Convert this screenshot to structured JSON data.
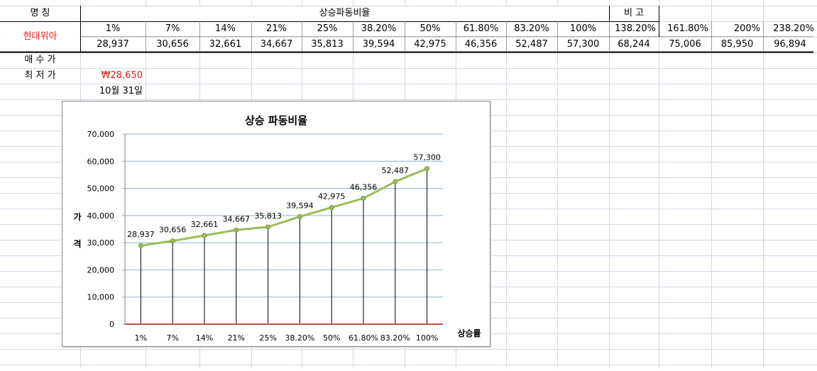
{
  "sheet": {
    "row1": {
      "name_label": "명    칭",
      "section_title": "상승파동비율",
      "remark_label": "비    고"
    },
    "company": "현대위아",
    "ratios": [
      "1%",
      "7%",
      "14%",
      "21%",
      "25%",
      "38.20%",
      "50%",
      "61.80%",
      "83.20%",
      "100%",
      "138.20%",
      "161.80%",
      "200%",
      "238.20%"
    ],
    "prices": [
      "28,937",
      "30,656",
      "32,661",
      "34,667",
      "35,813",
      "39,594",
      "42,975",
      "46,356",
      "52,487",
      "57,300",
      "68,244",
      "75,006",
      "85,950",
      "96,894"
    ],
    "buy_label": "매 수 가",
    "low_label": "최 저 가",
    "low_price": "₩28,650",
    "date": "10월 31일"
  },
  "colors": {
    "red_text": "#e0201b",
    "line": "#9bbb59",
    "drop": "#000000",
    "baseline": "#c0504d",
    "grid": "#8eb4c8"
  },
  "chart_data": {
    "type": "line",
    "title": "상승 파동비율",
    "ylabel": "가\n격",
    "xlabel": "상승률",
    "categories": [
      "1%",
      "7%",
      "14%",
      "21%",
      "25%",
      "38.20%",
      "50%",
      "61.80%",
      "83.20%",
      "100%"
    ],
    "values": [
      28937,
      30656,
      32661,
      34667,
      35813,
      39594,
      42975,
      46356,
      52487,
      57300
    ],
    "data_labels": [
      "28,937",
      "30,656",
      "32,661",
      "34,667",
      "35,813",
      "39,594",
      "42,975",
      "46,356",
      "52,487",
      "57,300"
    ],
    "ylim": [
      0,
      70000
    ],
    "ytick_labels": [
      "0",
      "10,000",
      "20,000",
      "30,000",
      "40,000",
      "50,000",
      "60,000",
      "70,000"
    ],
    "grid": true,
    "drop_lines": true,
    "legend": "none"
  }
}
